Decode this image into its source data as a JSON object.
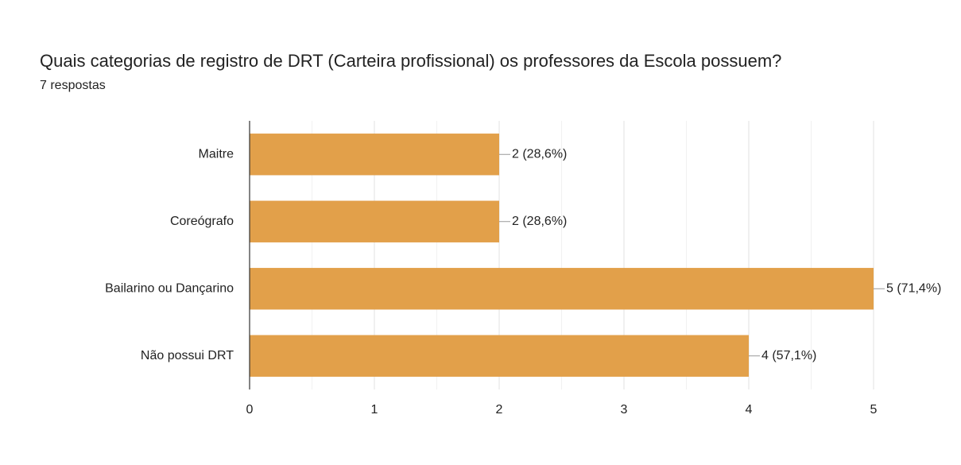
{
  "chart_data": {
    "type": "barh",
    "title": "Quais categorias de registro de DRT (Carteira profissional)  os professores da Escola possuem?",
    "subtitle": "7 respostas",
    "categories": [
      "Maitre",
      "Coreógrafo",
      "Bailarino ou Dançarino",
      "Não possui DRT"
    ],
    "values": [
      2,
      2,
      5,
      4
    ],
    "value_labels": [
      "2 (28,6%)",
      "2 (28,6%)",
      "5 (71,4%)",
      "4 (57,1%)"
    ],
    "color": "#e2a04a",
    "xlim": [
      0,
      5
    ],
    "xticks": [
      0,
      1,
      2,
      3,
      4,
      5
    ],
    "xminorticks": [
      0.5,
      1.5,
      2.5,
      3.5,
      4.5
    ],
    "grid": true
  }
}
